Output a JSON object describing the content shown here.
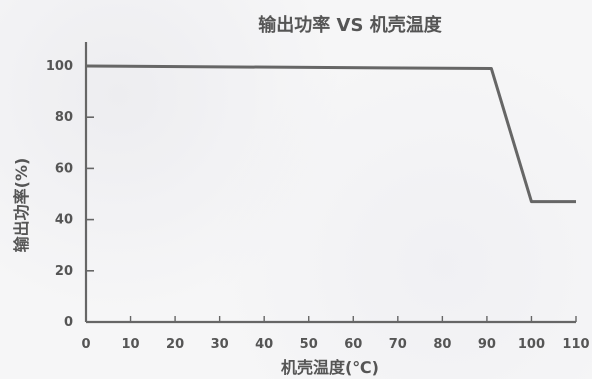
{
  "chart_data": {
    "type": "line",
    "title": "输出功率 VS 机壳温度",
    "xlabel": "机壳温度(℃)",
    "ylabel": "输出功率(%)",
    "xlim": [
      0,
      110
    ],
    "ylim": [
      0,
      100
    ],
    "x_ticks": [
      0,
      10,
      20,
      30,
      40,
      50,
      60,
      70,
      80,
      90,
      100,
      110
    ],
    "y_ticks": [
      0,
      20,
      40,
      60,
      80,
      100
    ],
    "grid": false,
    "series": [
      {
        "x": [
          0,
          91,
          100,
          110
        ],
        "y": [
          100,
          99,
          47,
          47
        ],
        "color": "#666666"
      }
    ]
  }
}
